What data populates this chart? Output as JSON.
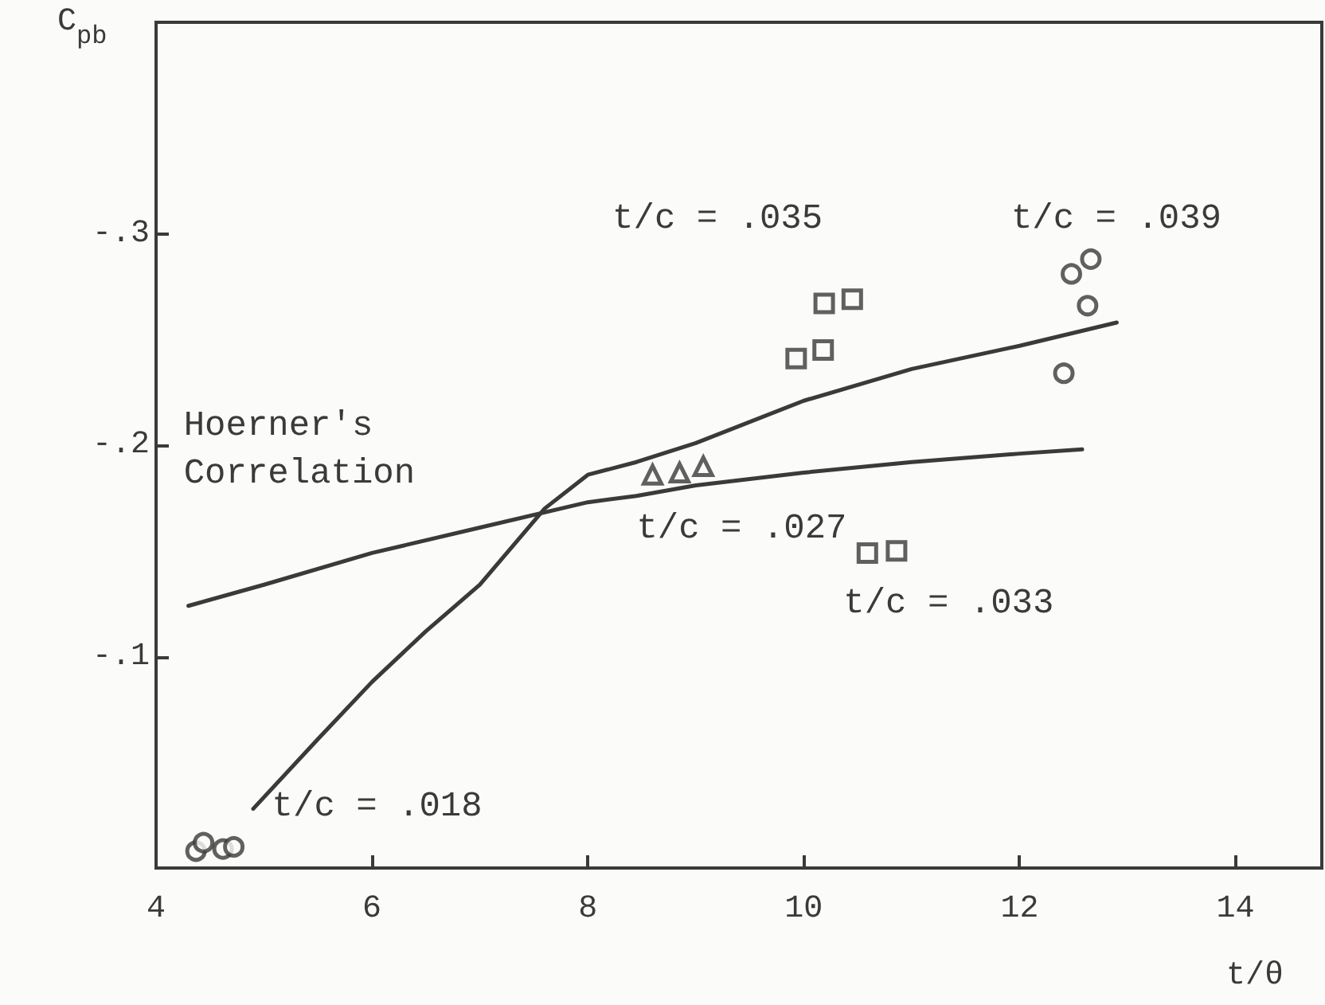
{
  "chart_data": {
    "type": "scatter",
    "xlabel": "t/θ",
    "ylabel": "C$_{pb}$",
    "xlim": [
      4,
      14.8
    ],
    "xticks": [
      4,
      6,
      8,
      10,
      12,
      14
    ],
    "ylim": [
      0,
      -0.4
    ],
    "yticks": [
      {
        "value": -0.1,
        "label": "-.1"
      },
      {
        "value": -0.2,
        "label": "-.2"
      },
      {
        "value": -0.3,
        "label": "-.3"
      }
    ],
    "grid": false,
    "series": [
      {
        "type": "line",
        "marker": "none",
        "color": "#3a3a3a",
        "x": [
          4.3,
          5,
          6,
          7,
          8,
          8.45,
          9,
          10,
          11,
          12,
          12.58
        ],
        "values": [
          -0.124,
          -0.134,
          -0.149,
          -0.161,
          -0.173,
          -0.176,
          -0.181,
          -0.187,
          -0.192,
          -0.196,
          -0.198
        ]
      },
      {
        "type": "line",
        "marker": "none",
        "color": "#3a3a3a",
        "x": [
          4.9,
          5.5,
          6,
          6.5,
          7,
          7.6,
          8,
          8.45,
          9,
          10,
          11,
          12,
          12.9
        ],
        "values": [
          -0.028,
          -0.061,
          -0.088,
          -0.112,
          -0.134,
          -0.17,
          -0.186,
          -0.192,
          -0.201,
          -0.221,
          -0.236,
          -0.247,
          -0.258
        ]
      },
      {
        "marker": "square",
        "color": "#3a3a3a",
        "x": [
          10.19,
          10.45,
          9.93,
          10.18
        ],
        "values": [
          -0.267,
          -0.269,
          -0.241,
          -0.245
        ]
      },
      {
        "marker": "circle",
        "color": "#3a3a3a",
        "x": [
          12.48,
          12.66,
          12.63,
          12.41
        ],
        "values": [
          -0.281,
          -0.288,
          -0.266,
          -0.234
        ]
      },
      {
        "marker": "triangle",
        "color": "#3a3a3a",
        "x": [
          8.6,
          8.85,
          9.07
        ],
        "values": [
          -0.186,
          -0.187,
          -0.19
        ]
      },
      {
        "marker": "square",
        "color": "#3a3a3a",
        "x": [
          10.59,
          10.86
        ],
        "values": [
          -0.149,
          -0.15
        ]
      },
      {
        "marker": "circle",
        "color": "#3a3a3a",
        "x": [
          4.37,
          4.44,
          4.62,
          4.72
        ],
        "values": [
          -0.008,
          -0.012,
          -0.009,
          -0.01
        ]
      }
    ],
    "annotations": [
      {
        "text": "t/c = .035",
        "x": 10.19,
        "y": -0.267
      },
      {
        "text": "t/c = .039",
        "x": 12.66,
        "y": -0.288
      },
      {
        "text": "Hoerner's\nCorrelation",
        "x": 7,
        "y": -0.161
      },
      {
        "text": "t/c = .027",
        "x": 8.85,
        "y": -0.187
      },
      {
        "text": "t/c = .033",
        "x": 10.59,
        "y": -0.149
      },
      {
        "text": "t/c = .018",
        "x": 4.72,
        "y": -0.01
      }
    ]
  }
}
